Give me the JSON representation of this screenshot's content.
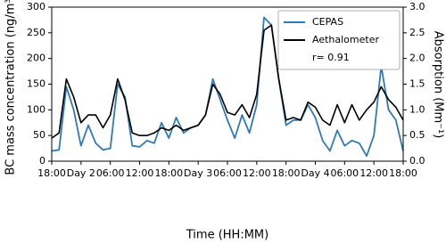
{
  "chart_data": {
    "type": "line",
    "x_label": "Time (HH:MM)",
    "y_label": "BC mass concentration (ng/m³)",
    "y2_label": "Absorption (Mm⁻¹)",
    "x": [
      0,
      1.5,
      3,
      4.5,
      6,
      7.5,
      9,
      10.5,
      12,
      13.5,
      15,
      16.5,
      18,
      19.5,
      21,
      22.5,
      24,
      25.5,
      27,
      28.5,
      30,
      31.5,
      33,
      34.5,
      36,
      37.5,
      39,
      40.5,
      42,
      43.5,
      45,
      46.5,
      48,
      49.5,
      51,
      52.5,
      54,
      55.5,
      57,
      58.5,
      60,
      61.5,
      63,
      64.5,
      66,
      67.5,
      69,
      70.5,
      72
    ],
    "series": [
      {
        "name": "CEPAS",
        "color": "#2f7bb8",
        "axis": "y",
        "values": [
          20,
          22,
          145,
          100,
          30,
          70,
          35,
          22,
          25,
          150,
          125,
          30,
          28,
          40,
          35,
          75,
          45,
          85,
          55,
          65,
          70,
          90,
          160,
          120,
          80,
          45,
          90,
          55,
          110,
          280,
          265,
          160,
          70,
          80,
          80,
          110,
          85,
          40,
          20,
          60,
          30,
          40,
          35,
          10,
          50,
          185,
          100,
          80,
          20
        ]
      },
      {
        "name": "Aethalometer",
        "color": "#000000",
        "axis": "y2",
        "values": [
          0.45,
          0.55,
          1.6,
          1.25,
          0.75,
          0.9,
          0.9,
          0.65,
          0.9,
          1.6,
          1.2,
          0.55,
          0.5,
          0.5,
          0.55,
          0.65,
          0.6,
          0.7,
          0.6,
          0.65,
          0.7,
          0.9,
          1.5,
          1.3,
          0.95,
          0.9,
          1.1,
          0.85,
          1.3,
          2.55,
          2.65,
          1.6,
          0.8,
          0.85,
          0.8,
          1.15,
          1.05,
          0.8,
          0.7,
          1.1,
          0.75,
          1.1,
          0.8,
          1.0,
          1.15,
          1.45,
          1.2,
          1.05,
          0.8
        ]
      }
    ],
    "annotation": "r= 0.91",
    "xlim": [
      0,
      72
    ],
    "xticks": [
      {
        "value": 0,
        "label": "18:00"
      },
      {
        "value": 6,
        "label": "Day 2"
      },
      {
        "value": 12,
        "label": "06:00"
      },
      {
        "value": 18,
        "label": "12:00"
      },
      {
        "value": 24,
        "label": "18:00"
      },
      {
        "value": 30,
        "label": "Day 3"
      },
      {
        "value": 36,
        "label": "06:00"
      },
      {
        "value": 42,
        "label": "12:00"
      },
      {
        "value": 48,
        "label": "18:00"
      },
      {
        "value": 54,
        "label": "Day 4"
      },
      {
        "value": 60,
        "label": "06:00"
      },
      {
        "value": 66,
        "label": "12:00"
      },
      {
        "value": 72,
        "label": "18:00"
      }
    ],
    "ylim": [
      0,
      300
    ],
    "yticks": [
      0,
      50,
      100,
      150,
      200,
      250,
      300
    ],
    "y2lim": [
      0,
      3
    ],
    "y2ticks": [
      {
        "value": 0,
        "label": "0.0"
      },
      {
        "value": 0.5,
        "label": "0.5"
      },
      {
        "value": 1,
        "label": "1.0"
      },
      {
        "value": 1.5,
        "label": "1.5"
      },
      {
        "value": 2,
        "label": "2.0"
      },
      {
        "value": 2.5,
        "label": "2.5"
      },
      {
        "value": 3,
        "label": "3.0"
      }
    ],
    "legend": "upper right"
  }
}
